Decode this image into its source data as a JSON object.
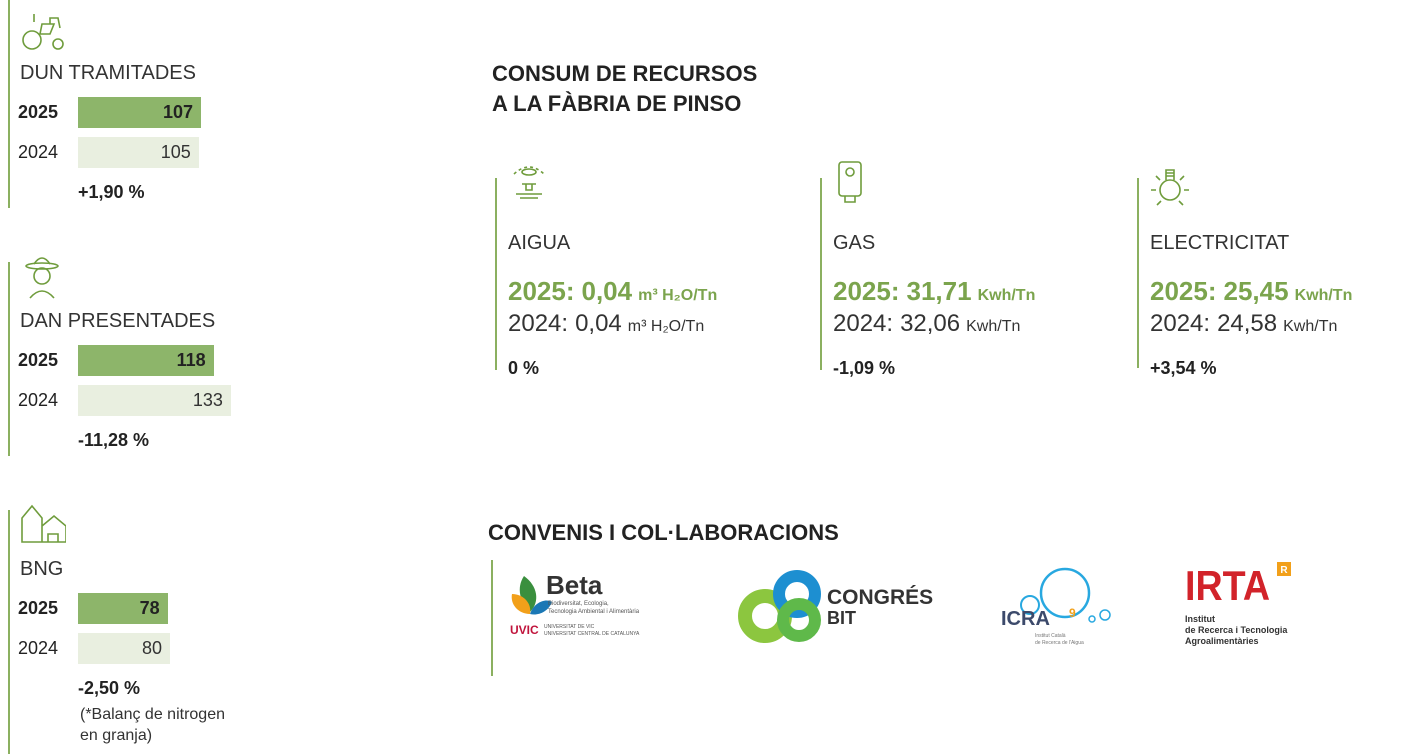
{
  "indicators": [
    {
      "title": "DUN TRAMITADES",
      "rows": [
        {
          "year": "2025",
          "value": 107
        },
        {
          "year": "2024",
          "value": 105
        }
      ],
      "change": "+1,90 %"
    },
    {
      "title": "DAN PRESENTADES",
      "rows": [
        {
          "year": "2025",
          "value": 118
        },
        {
          "year": "2024",
          "value": 133
        }
      ],
      "change": "-11,28 %"
    },
    {
      "title": "BNG",
      "rows": [
        {
          "year": "2025",
          "value": 78
        },
        {
          "year": "2024",
          "value": 80
        }
      ],
      "change": "-2,50 %",
      "note": [
        "(*Balanç de nitrogen",
        "en granja)"
      ]
    }
  ],
  "resources": {
    "title": [
      "CONSUM DE RECURSOS",
      "A LA FÀBRIA DE PINSO"
    ],
    "items": [
      {
        "name": "AIGUA",
        "current": {
          "label": "2025:",
          "value": "0,04",
          "unit": "m³ H₂O/Tn"
        },
        "previous": {
          "label": "2024:",
          "value": "0,04",
          "unit": "m³ H₂O/Tn"
        },
        "change": "0 %"
      },
      {
        "name": "GAS",
        "current": {
          "label": "2025:",
          "value": "31,71",
          "unit": "Kwh/Tn"
        },
        "previous": {
          "label": "2024:",
          "value": "32,06",
          "unit": "Kwh/Tn"
        },
        "change": "-1,09 %"
      },
      {
        "name": "ELECTRICITAT",
        "current": {
          "label": "2025:",
          "value": "25,45",
          "unit": "Kwh/Tn"
        },
        "previous": {
          "label": "2024:",
          "value": "24,58",
          "unit": "Kwh/Tn"
        },
        "change": "+3,54 %"
      }
    ]
  },
  "agreements": {
    "title": "CONVENIS I COL·LABORACIONS",
    "partners": [
      {
        "name": "Beta",
        "subtitle": [
          "Biodiversitat, Ecologia,",
          "Tecnologia Ambiental i Alimentària"
        ],
        "institution": "UVIC",
        "institution_name": [
          "UNIVERSITAT DE VIC",
          "UNIVERSITAT CENTRAL DE CATALUNYA"
        ]
      },
      {
        "name": [
          "CONGRÉS",
          "BIT"
        ]
      },
      {
        "name": "ICRA",
        "mark": "9",
        "subtitle": [
          "Institut Català",
          "de Recerca de l'Aigua"
        ]
      },
      {
        "name": "IRTA",
        "mark": "R",
        "subtitle": [
          "Institut",
          "de Recerca i Tecnologia",
          "Agroalimentàries"
        ]
      }
    ]
  }
}
